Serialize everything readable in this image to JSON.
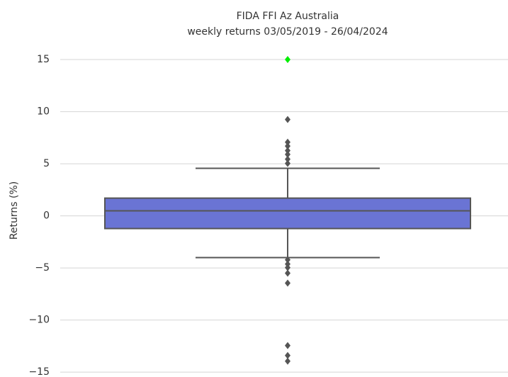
{
  "chart_data": {
    "type": "box",
    "title": "FIDA FFI Az Australia",
    "subtitle": "weekly returns 03/05/2019 - 26/04/2024",
    "y_label": "Returns (%)",
    "ylim": [
      -15.4,
      16.5
    ],
    "yticks": [
      {
        "value": -15,
        "label": "−15"
      },
      {
        "value": -10,
        "label": "−10"
      },
      {
        "value": -5,
        "label": "−5"
      },
      0,
      5,
      10,
      15
    ],
    "grid": true,
    "color": "#6a74d4",
    "line_color": "#555555",
    "whislo": -4.01,
    "q1": -1.22,
    "median": 0.48,
    "q3": 1.7,
    "whishi": 4.56,
    "outliers": [
      15.0,
      9.25,
      7.07,
      6.7,
      6.26,
      5.9,
      5.44,
      5.03,
      -4.22,
      -4.63,
      -4.97,
      -5.5,
      -6.46,
      -12.45,
      -13.4,
      -13.95
    ],
    "outlier_colors": [
      "#00ee00",
      "#555555",
      "#555555",
      "#555555",
      "#555555",
      "#555555",
      "#555555",
      "#555555",
      "#555555",
      "#555555",
      "#555555",
      "#555555",
      "#555555",
      "#555555",
      "#555555",
      "#555555"
    ]
  }
}
